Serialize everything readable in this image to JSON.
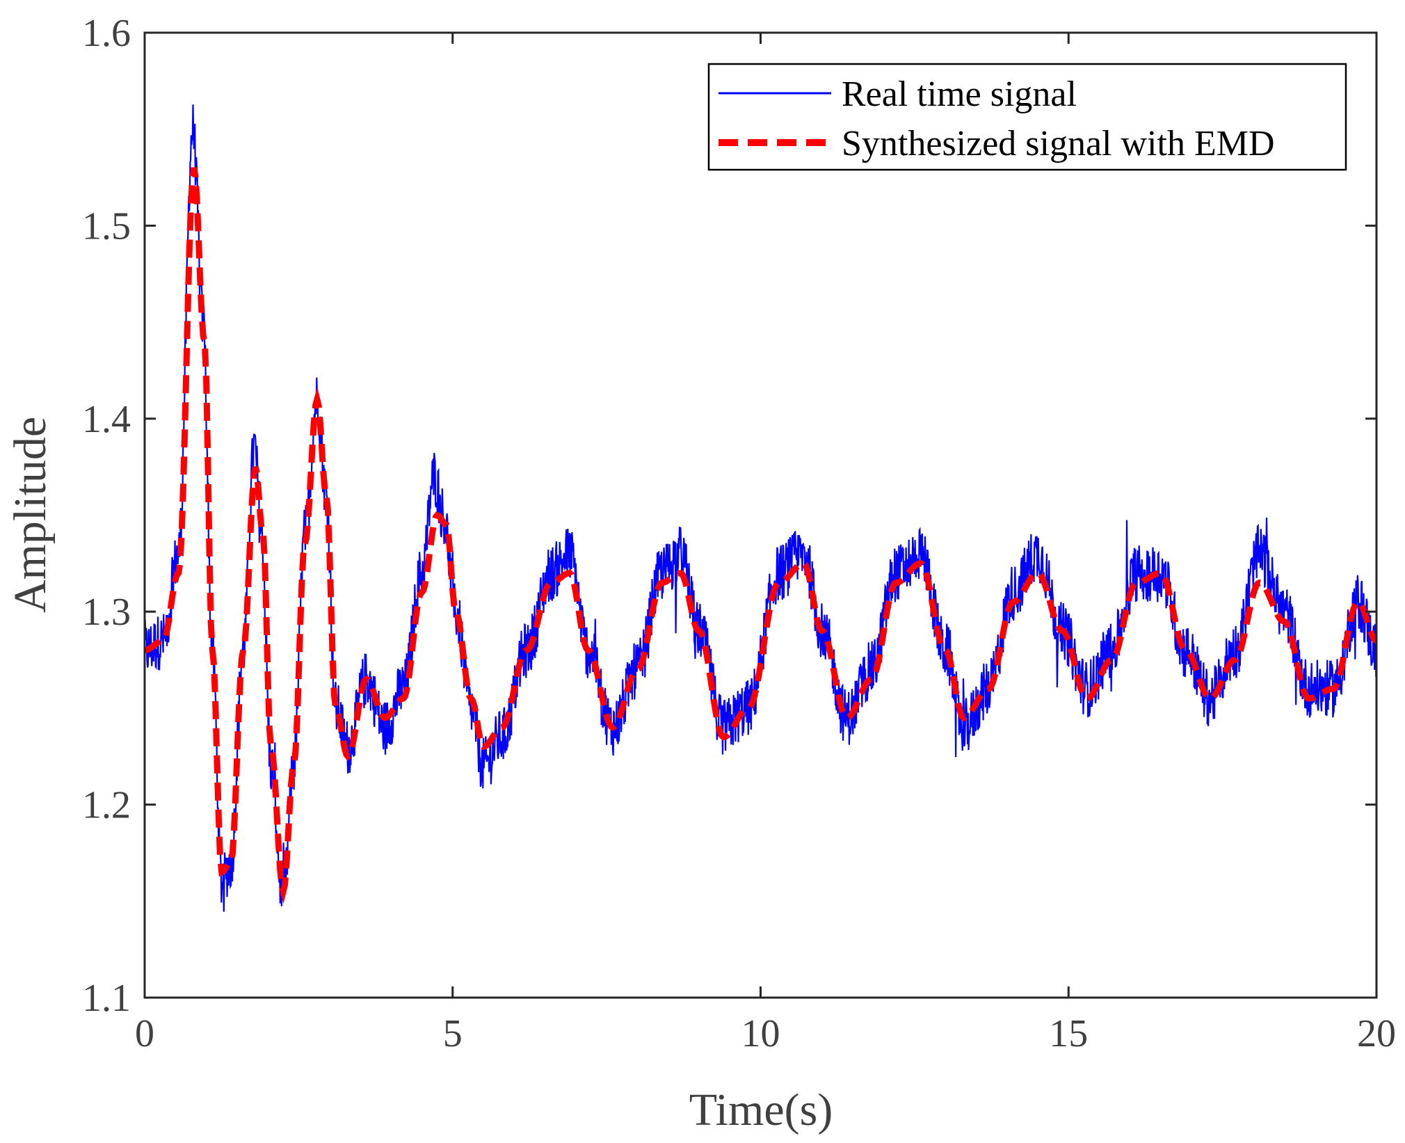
{
  "chart_data": {
    "type": "line",
    "xlabel": "Time(s)",
    "ylabel": "Amplitude",
    "xlim": [
      0,
      20
    ],
    "ylim": [
      1.1,
      1.6
    ],
    "xticks": [
      0,
      5,
      10,
      15,
      20
    ],
    "xtick_labels": [
      "0",
      "5",
      "10",
      "15",
      "20"
    ],
    "yticks": [
      1.1,
      1.2,
      1.3,
      1.4,
      1.5,
      1.6
    ],
    "ytick_labels": [
      "1.1",
      "1.2",
      "1.3",
      "1.4",
      "1.5",
      "1.6"
    ],
    "grid": false,
    "legend_position": "top-right",
    "series": [
      {
        "name": "Real time signal",
        "color": "#0000ff",
        "style": "solid",
        "noise_amplitude": 0.015,
        "x": [
          0,
          0.3,
          0.55,
          0.78,
          0.95,
          1.1,
          1.25,
          1.4,
          1.6,
          1.78,
          1.9,
          2.05,
          2.25,
          2.42,
          2.6,
          2.8,
          2.95,
          3.1,
          3.3,
          3.6,
          3.9,
          4.2,
          4.5,
          4.7,
          4.85,
          5.05,
          5.3,
          5.5,
          5.8,
          6.2,
          6.6,
          6.9,
          7.2,
          7.6,
          8.0,
          8.4,
          8.7,
          9.0,
          9.4,
          9.8,
          10.3,
          10.7,
          11.0,
          11.4,
          11.8,
          12.2,
          12.6,
          13.0,
          13.3,
          13.7,
          14.1,
          14.5,
          14.9,
          15.3,
          15.7,
          16.1,
          16.5,
          16.9,
          17.3,
          17.7,
          18.1,
          18.5,
          18.9,
          19.3,
          19.7,
          20.0
        ],
        "y": [
          1.28,
          1.285,
          1.33,
          1.55,
          1.45,
          1.28,
          1.16,
          1.17,
          1.28,
          1.385,
          1.34,
          1.22,
          1.15,
          1.22,
          1.34,
          1.41,
          1.36,
          1.25,
          1.23,
          1.265,
          1.24,
          1.26,
          1.32,
          1.37,
          1.35,
          1.3,
          1.25,
          1.22,
          1.235,
          1.28,
          1.32,
          1.33,
          1.28,
          1.24,
          1.27,
          1.32,
          1.33,
          1.29,
          1.24,
          1.25,
          1.32,
          1.33,
          1.29,
          1.245,
          1.27,
          1.32,
          1.33,
          1.28,
          1.24,
          1.26,
          1.31,
          1.33,
          1.29,
          1.26,
          1.28,
          1.32,
          1.32,
          1.28,
          1.255,
          1.28,
          1.33,
          1.3,
          1.26,
          1.26,
          1.305,
          1.28
        ]
      },
      {
        "name": "Synthesized signal with EMD",
        "color": "#ff0000",
        "style": "dashed",
        "x": [
          0,
          0.3,
          0.55,
          0.8,
          0.97,
          1.1,
          1.25,
          1.4,
          1.6,
          1.8,
          1.92,
          2.05,
          2.25,
          2.42,
          2.6,
          2.8,
          2.95,
          3.1,
          3.3,
          3.6,
          3.9,
          4.2,
          4.5,
          4.75,
          4.9,
          5.05,
          5.3,
          5.5,
          5.8,
          6.2,
          6.6,
          6.9,
          7.2,
          7.6,
          8.0,
          8.4,
          8.7,
          9.0,
          9.4,
          9.8,
          10.3,
          10.7,
          11.0,
          11.4,
          11.8,
          12.2,
          12.6,
          13.0,
          13.3,
          13.7,
          14.1,
          14.5,
          14.9,
          15.3,
          15.7,
          16.1,
          16.5,
          16.9,
          17.3,
          17.7,
          18.1,
          18.5,
          18.9,
          19.3,
          19.7,
          20.0
        ],
        "y": [
          1.28,
          1.285,
          1.32,
          1.53,
          1.44,
          1.28,
          1.165,
          1.17,
          1.28,
          1.375,
          1.34,
          1.23,
          1.155,
          1.22,
          1.335,
          1.41,
          1.36,
          1.25,
          1.225,
          1.265,
          1.245,
          1.255,
          1.31,
          1.35,
          1.345,
          1.3,
          1.255,
          1.23,
          1.24,
          1.28,
          1.315,
          1.32,
          1.28,
          1.24,
          1.27,
          1.315,
          1.32,
          1.29,
          1.235,
          1.25,
          1.315,
          1.325,
          1.29,
          1.245,
          1.265,
          1.315,
          1.325,
          1.28,
          1.245,
          1.26,
          1.305,
          1.32,
          1.29,
          1.255,
          1.275,
          1.315,
          1.32,
          1.28,
          1.255,
          1.275,
          1.315,
          1.295,
          1.255,
          1.26,
          1.305,
          1.285
        ]
      }
    ]
  }
}
